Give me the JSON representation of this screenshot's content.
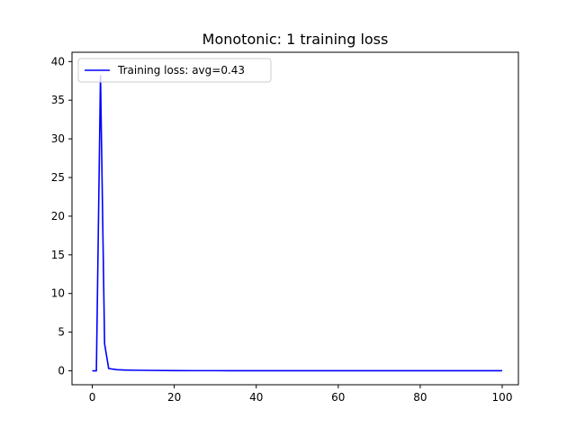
{
  "chart_data": {
    "type": "line",
    "title": "Monotonic: 1 training loss",
    "xlabel": "",
    "ylabel": "",
    "xlim": [
      -4.95,
      103.95
    ],
    "ylim": [
      -1.8,
      41.2
    ],
    "xticks": [
      0,
      20,
      40,
      60,
      80,
      100
    ],
    "yticks": [
      0,
      5,
      10,
      15,
      20,
      25,
      30,
      35,
      40
    ],
    "legend_position": "upper left",
    "grid": false,
    "series": [
      {
        "name": "Training loss: avg=0.43",
        "color": "#0000ff",
        "x": [
          0,
          1,
          2,
          3,
          4,
          6,
          8,
          10,
          15,
          20,
          25,
          30,
          40,
          50,
          60,
          70,
          80,
          90,
          100
        ],
        "y": [
          0.0,
          0.0,
          38.2,
          3.5,
          0.3,
          0.15,
          0.1,
          0.08,
          0.05,
          0.03,
          0.02,
          0.02,
          0.01,
          0.01,
          0.01,
          0.01,
          0.01,
          0.01,
          0.01
        ]
      }
    ]
  }
}
